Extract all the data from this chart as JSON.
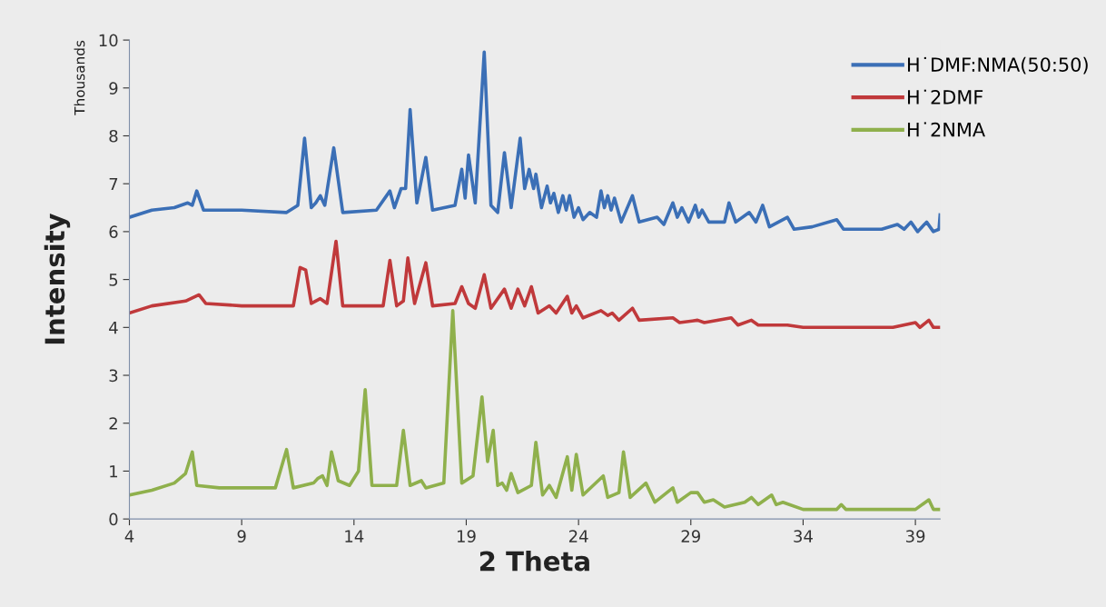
{
  "chart_data": {
    "type": "line",
    "xlabel": "2 Theta",
    "ylabel": "Intensity",
    "annotations": [
      "Thousands"
    ],
    "xlim": [
      4,
      40.1
    ],
    "ylim": [
      0,
      10
    ],
    "xticks": [
      4,
      9,
      14,
      19,
      24,
      29,
      34,
      39
    ],
    "yticks": [
      0,
      1,
      2,
      3,
      4,
      5,
      6,
      7,
      8,
      9,
      10
    ],
    "grid": false,
    "legend": "top right",
    "marker": "none",
    "line_style": "solid",
    "series": [
      {
        "name": "H˙DMF:NMA(50:50)",
        "color": "#3b6fb6",
        "x": [
          4,
          5,
          6,
          6.6,
          6.8,
          7.0,
          7.3,
          9,
          11,
          11.5,
          11.8,
          12.1,
          12.3,
          12.5,
          12.7,
          13.1,
          13.5,
          15.0,
          15.6,
          15.8,
          16.1,
          16.3,
          16.5,
          16.8,
          17.2,
          17.5,
          18.5,
          18.8,
          18.95,
          19.1,
          19.4,
          19.8,
          20.1,
          20.4,
          20.7,
          21.0,
          21.4,
          21.6,
          21.8,
          22.0,
          22.1,
          22.35,
          22.6,
          22.75,
          22.9,
          23.1,
          23.3,
          23.45,
          23.6,
          23.8,
          24.0,
          24.2,
          24.5,
          24.8,
          25.0,
          25.15,
          25.3,
          25.45,
          25.6,
          25.9,
          26.4,
          26.7,
          27.5,
          27.8,
          28.2,
          28.4,
          28.6,
          28.9,
          29.2,
          29.35,
          29.5,
          29.8,
          30.5,
          30.7,
          31.0,
          31.6,
          31.9,
          32.2,
          32.5,
          33.3,
          33.6,
          34.4,
          35.5,
          35.8,
          37.5,
          38.2,
          38.5,
          38.8,
          39.1,
          39.5,
          39.8,
          40.05,
          40.1
        ],
        "values": [
          6.3,
          6.45,
          6.5,
          6.6,
          6.55,
          6.85,
          6.45,
          6.45,
          6.4,
          6.55,
          7.95,
          6.5,
          6.6,
          6.75,
          6.55,
          7.75,
          6.4,
          6.45,
          6.85,
          6.5,
          6.9,
          6.9,
          8.55,
          6.6,
          7.55,
          6.45,
          6.55,
          7.3,
          6.7,
          7.6,
          6.6,
          9.75,
          6.55,
          6.4,
          7.65,
          6.5,
          7.95,
          6.9,
          7.3,
          6.9,
          7.2,
          6.5,
          6.95,
          6.6,
          6.8,
          6.4,
          6.75,
          6.45,
          6.75,
          6.3,
          6.5,
          6.25,
          6.4,
          6.3,
          6.85,
          6.5,
          6.75,
          6.45,
          6.7,
          6.2,
          6.75,
          6.2,
          6.3,
          6.15,
          6.6,
          6.3,
          6.5,
          6.2,
          6.55,
          6.3,
          6.45,
          6.2,
          6.2,
          6.6,
          6.2,
          6.4,
          6.2,
          6.55,
          6.1,
          6.3,
          6.05,
          6.1,
          6.25,
          6.05,
          6.05,
          6.15,
          6.05,
          6.2,
          6.0,
          6.2,
          6.0,
          6.05,
          6.35
        ]
      },
      {
        "name": "H˙2DMF",
        "color": "#c0393b",
        "x": [
          4,
          5,
          6.5,
          7.1,
          7.4,
          9,
          11.3,
          11.6,
          11.85,
          12.1,
          12.5,
          12.8,
          13.2,
          13.5,
          15.3,
          15.6,
          15.9,
          16.2,
          16.4,
          16.7,
          17.2,
          17.5,
          18.5,
          18.8,
          19.1,
          19.4,
          19.8,
          20.1,
          20.7,
          21.0,
          21.3,
          21.6,
          21.9,
          22.2,
          22.7,
          23.0,
          23.5,
          23.7,
          23.9,
          24.2,
          25.0,
          25.3,
          25.5,
          25.8,
          26.4,
          26.7,
          28.2,
          28.5,
          29.3,
          29.6,
          30.8,
          31.1,
          31.7,
          32.0,
          33.3,
          34,
          38,
          39.0,
          39.2,
          39.6,
          39.8,
          40.1
        ],
        "values": [
          4.3,
          4.45,
          4.55,
          4.68,
          4.5,
          4.45,
          4.45,
          5.25,
          5.2,
          4.5,
          4.6,
          4.5,
          5.8,
          4.45,
          4.45,
          5.4,
          4.45,
          4.55,
          5.45,
          4.5,
          5.35,
          4.45,
          4.5,
          4.85,
          4.5,
          4.4,
          5.1,
          4.4,
          4.8,
          4.4,
          4.8,
          4.45,
          4.85,
          4.3,
          4.45,
          4.3,
          4.65,
          4.3,
          4.45,
          4.2,
          4.35,
          4.25,
          4.3,
          4.15,
          4.4,
          4.15,
          4.2,
          4.1,
          4.15,
          4.1,
          4.2,
          4.05,
          4.15,
          4.05,
          4.05,
          4.0,
          4.0,
          4.1,
          4.0,
          4.15,
          4.0,
          4.0
        ]
      },
      {
        "name": "H˙2NMA",
        "color": "#8fb04c",
        "x": [
          4,
          5,
          6,
          6.5,
          6.8,
          7.0,
          8,
          10.5,
          11.0,
          11.3,
          12.2,
          12.4,
          12.6,
          12.8,
          13.0,
          13.3,
          13.8,
          14.2,
          14.5,
          14.8,
          15.9,
          16.2,
          16.5,
          17.0,
          17.2,
          18.0,
          18.4,
          18.8,
          19.3,
          19.7,
          19.95,
          20.2,
          20.4,
          20.6,
          20.8,
          21.0,
          21.3,
          21.9,
          22.1,
          22.4,
          22.7,
          23.0,
          23.5,
          23.7,
          23.9,
          24.2,
          25.1,
          25.3,
          25.8,
          26.0,
          26.3,
          27.0,
          27.4,
          28.2,
          28.4,
          29.0,
          29.3,
          29.6,
          30.0,
          30.5,
          31.4,
          31.7,
          32.0,
          32.6,
          32.8,
          33.1,
          34,
          35.5,
          35.7,
          35.9,
          39.0,
          39.6,
          39.8,
          40.1
        ],
        "values": [
          0.5,
          0.6,
          0.75,
          0.95,
          1.4,
          0.7,
          0.65,
          0.65,
          1.45,
          0.65,
          0.75,
          0.85,
          0.9,
          0.7,
          1.4,
          0.8,
          0.7,
          1.0,
          2.7,
          0.7,
          0.7,
          1.85,
          0.7,
          0.8,
          0.65,
          0.75,
          4.35,
          0.75,
          0.9,
          2.55,
          1.2,
          1.85,
          0.7,
          0.75,
          0.6,
          0.95,
          0.55,
          0.7,
          1.6,
          0.5,
          0.7,
          0.45,
          1.3,
          0.6,
          1.35,
          0.5,
          0.9,
          0.45,
          0.55,
          1.4,
          0.45,
          0.75,
          0.35,
          0.65,
          0.35,
          0.55,
          0.55,
          0.35,
          0.4,
          0.25,
          0.35,
          0.45,
          0.3,
          0.5,
          0.3,
          0.35,
          0.2,
          0.2,
          0.3,
          0.2,
          0.2,
          0.4,
          0.2,
          0.2
        ]
      }
    ]
  }
}
